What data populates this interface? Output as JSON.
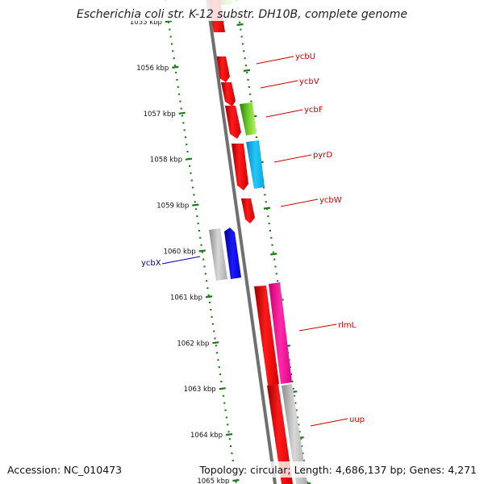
{
  "title": "Escherichia coli str. K-12 substr. DH10B, complete genome",
  "footer": {
    "accession": "Accession: NC_010473",
    "summary": "Topology: circular; Length: 4,686,137 bp; Genes: 4,271"
  },
  "ticks": [
    {
      "kbp": 1055,
      "label": "1055 kbp"
    },
    {
      "kbp": 1056,
      "label": "1056 kbp"
    },
    {
      "kbp": 1057,
      "label": "1057 kbp"
    },
    {
      "kbp": 1058,
      "label": "1058 kbp"
    },
    {
      "kbp": 1059,
      "label": "1059 kbp"
    },
    {
      "kbp": 1060,
      "label": "1060 kbp"
    },
    {
      "kbp": 1061,
      "label": "1061 kbp"
    },
    {
      "kbp": 1062,
      "label": "1062 kbp"
    },
    {
      "kbp": 1063,
      "label": "1063 kbp"
    },
    {
      "kbp": 1064,
      "label": "1064 kbp"
    },
    {
      "kbp": 1065,
      "label": "1065 kbp"
    }
  ],
  "gene_labels": [
    {
      "name": "ycbU",
      "color": "#cc0000"
    },
    {
      "name": "ycbV",
      "color": "#cc0000"
    },
    {
      "name": "ycbF",
      "color": "#cc0000"
    },
    {
      "name": "pyrD",
      "color": "#cc0000"
    },
    {
      "name": "ycbW",
      "color": "#cc0000"
    },
    {
      "name": "ycbX",
      "color": "#0000aa"
    },
    {
      "name": "rlmL",
      "color": "#cc0000"
    },
    {
      "name": "uup",
      "color": "#cc0000"
    }
  ],
  "colors": {
    "backbone": "#777777",
    "ruler": "#1a7a1a",
    "cds": "#ff0000",
    "rna": "#7ecf3a",
    "pyrD": "#1fbff0",
    "rlmL": "#ff1ca0",
    "gray": "#bdbdbd",
    "ycbX": "#0000ff"
  }
}
